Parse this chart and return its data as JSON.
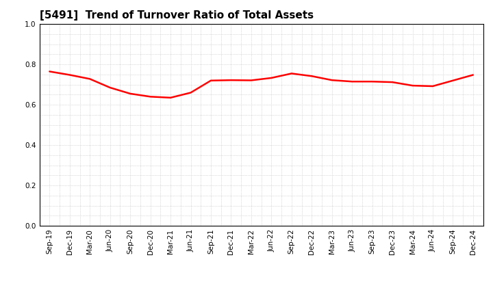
{
  "title": "[5491]  Trend of Turnover Ratio of Total Assets",
  "x_labels": [
    "Sep-19",
    "Dec-19",
    "Mar-20",
    "Jun-20",
    "Sep-20",
    "Dec-20",
    "Mar-21",
    "Jun-21",
    "Sep-21",
    "Dec-21",
    "Mar-22",
    "Jun-22",
    "Sep-22",
    "Dec-22",
    "Mar-23",
    "Jun-23",
    "Sep-23",
    "Dec-23",
    "Mar-24",
    "Jun-24",
    "Sep-24",
    "Dec-24"
  ],
  "y_values": [
    0.765,
    0.748,
    0.728,
    0.685,
    0.655,
    0.64,
    0.635,
    0.66,
    0.72,
    0.722,
    0.721,
    0.733,
    0.755,
    0.742,
    0.722,
    0.715,
    0.715,
    0.712,
    0.695,
    0.692,
    0.72,
    0.748
  ],
  "ylim": [
    0.0,
    1.0
  ],
  "yticks": [
    0.0,
    0.2,
    0.4,
    0.6,
    0.8,
    1.0
  ],
  "line_color": "#FF0000",
  "line_width": 1.8,
  "bg_color": "#FFFFFF",
  "plot_bg_color": "#FFFFFF",
  "grid_color": "#BBBBBB",
  "title_fontsize": 11,
  "tick_fontsize": 7.5,
  "title_color": "#000000"
}
